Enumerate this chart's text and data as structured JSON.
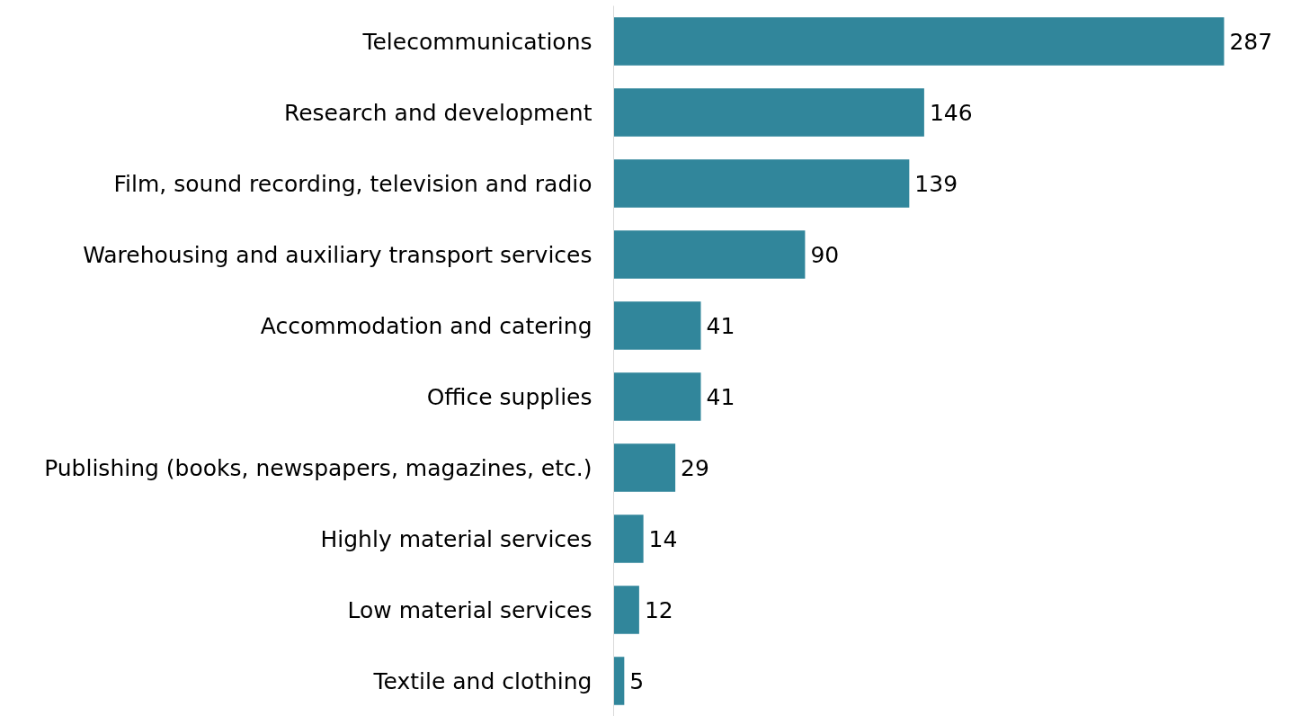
{
  "chart_data": {
    "type": "bar",
    "orientation": "horizontal",
    "data_labels": true,
    "grid": false,
    "tick_labels": "y",
    "categories": [
      "Telecommunications",
      "Research and development",
      "Film, sound recording, television and radio",
      "Warehousing and auxiliary transport services",
      "Accommodation and catering",
      "Office supplies",
      "Publishing (books, newspapers, magazines, etc.)",
      "Highly material services",
      "Low material services",
      "Textile and clothing"
    ],
    "values": [
      287,
      146,
      139,
      90,
      41,
      41,
      29,
      14,
      12,
      5
    ],
    "color": "#31869b"
  }
}
